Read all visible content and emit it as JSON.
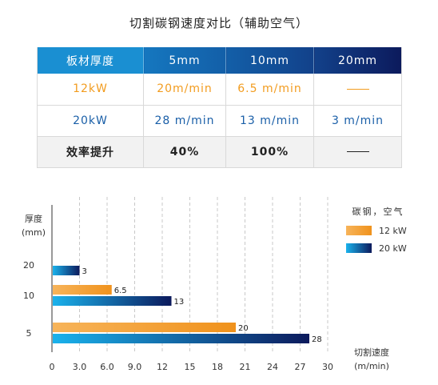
{
  "title": "切割碳钢速度对比（辅助空气）",
  "table": {
    "header": [
      "板材厚度",
      "5mm",
      "10mm",
      "20mm"
    ],
    "rows": [
      {
        "label": "12kW",
        "cells": [
          "20m/min",
          "6.5 m/min",
          ""
        ]
      },
      {
        "label": "20kW",
        "cells": [
          "28 m/min",
          "13 m/min",
          "3 m/min"
        ]
      },
      {
        "label": "效率提升",
        "cells": [
          "40%",
          "100%",
          ""
        ]
      }
    ]
  },
  "chart_data": {
    "type": "bar",
    "orientation": "horizontal",
    "categories": [
      "20",
      "10",
      "5"
    ],
    "series": [
      {
        "name": "12 kW",
        "values": [
          null,
          6.5,
          20
        ],
        "labels": [
          "",
          "6.5",
          "20"
        ]
      },
      {
        "name": "20 kW",
        "values": [
          3,
          13,
          28
        ],
        "labels": [
          "3",
          "13",
          "28"
        ]
      }
    ],
    "legend_title": "碳钢，空气",
    "legend_position": "top-right",
    "ylabel_line1": "厚度",
    "ylabel_line2": "(mm)",
    "xlabel_line1": "切割速度",
    "xlabel_line2": "(m/min)",
    "xticks": [
      "0",
      "3.0",
      "6.0",
      "9.0",
      "12",
      "15",
      "18",
      "21",
      "24",
      "27",
      "30"
    ],
    "xlim": [
      0,
      30
    ],
    "grid": true
  },
  "colors": {
    "orange_start": "#f7b45a",
    "orange_end": "#f0921c",
    "blue_start": "#1ab2ec",
    "blue_end": "#0c1a5c"
  }
}
